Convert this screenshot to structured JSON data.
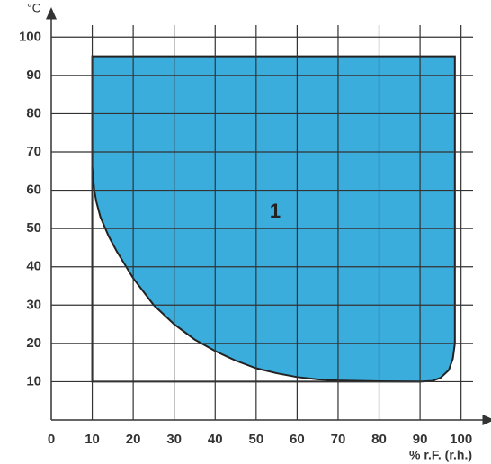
{
  "chart_data": {
    "type": "area",
    "x_label": "% r.F. (r.h.)",
    "y_label": "°C",
    "annotation": "1",
    "xlim": [
      0,
      106
    ],
    "ylim": [
      0,
      105
    ],
    "xticks": [
      0,
      10,
      20,
      30,
      40,
      50,
      60,
      70,
      80,
      90,
      100
    ],
    "yticks": [
      10,
      20,
      30,
      40,
      50,
      60,
      70,
      80,
      90,
      100
    ],
    "grid": true,
    "series": [
      {
        "color": "#3aaddc",
        "fill": true,
        "x": [
          10,
          10,
          10.5,
          11,
          12,
          14,
          16,
          20,
          25,
          30,
          35,
          40,
          45,
          50,
          55,
          60,
          65,
          70,
          80,
          90,
          93,
          95,
          97,
          98,
          98.5,
          98.5
        ],
        "values": [
          95,
          66,
          60,
          57,
          53,
          48,
          44,
          37,
          30,
          25,
          21,
          18,
          15.5,
          13.5,
          12.2,
          11.2,
          10.6,
          10.3,
          10.1,
          10,
          10.2,
          11,
          13,
          16,
          20,
          95
        ]
      },
      {
        "color": "#222222",
        "fill": false,
        "x": [
          10,
          10,
          90
        ],
        "values": [
          66,
          10,
          10
        ]
      }
    ]
  }
}
